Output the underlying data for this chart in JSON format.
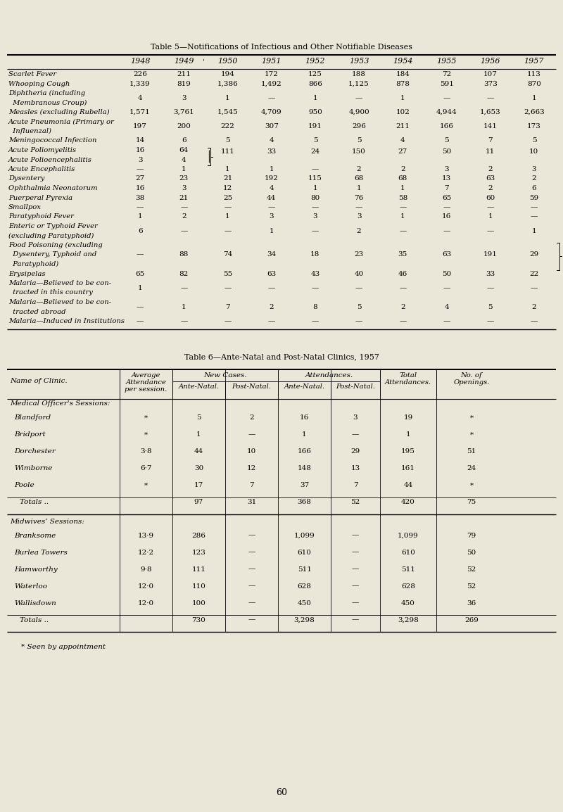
{
  "bg_color": "#eae6d8",
  "title5": "Table 5—Notifications of Infectious and Other Notifiable Diseases",
  "title6": "Table 6—Ante-Natal and Post-Natal Clinics, 1957",
  "footnote": "* Seen by appointment",
  "page_number": "60",
  "table5": {
    "years": [
      "1948",
      "1949",
      "1950",
      "1951",
      "1952",
      "1953",
      "1954",
      "1955",
      "1956",
      "1957"
    ],
    "rows": [
      {
        "label1": "Scarlet Fever",
        "label2": "",
        "label3": "",
        "dots": true,
        "values": [
          "226",
          "211",
          "194",
          "172",
          "125",
          "188",
          "184",
          "72",
          "107",
          "113"
        ]
      },
      {
        "label1": "Whooping Cough",
        "label2": "",
        "label3": "",
        "dots": true,
        "values": [
          "1,339",
          "819",
          "1,386",
          "1,492",
          "866",
          "1,125",
          "878",
          "591",
          "373",
          "870"
        ]
      },
      {
        "label1": "Diphtheria (including",
        "label2": "  Membranous Croup)",
        "label3": "",
        "dots": true,
        "values": [
          "4",
          "3",
          "1",
          "—",
          "1",
          "—",
          "1",
          "—",
          "—",
          "1"
        ]
      },
      {
        "label1": "Measles (excluding Rubella)",
        "label2": "",
        "label3": "",
        "dots": true,
        "values": [
          "1,571",
          "3,761",
          "1,545",
          "4,709",
          "950",
          "4,900",
          "102",
          "4,944",
          "1,653",
          "2,663"
        ]
      },
      {
        "label1": "Acute Pneumonia (Primary or",
        "label2": "  Influenzal)",
        "label3": "",
        "dots": true,
        "values": [
          "197",
          "200",
          "222",
          "307",
          "191",
          "296",
          "211",
          "166",
          "141",
          "173"
        ]
      },
      {
        "label1": "Meningococcal Infection",
        "label2": "",
        "label3": "",
        "dots": true,
        "values": [
          "14",
          "6",
          "5",
          "4",
          "5",
          "5",
          "4",
          "5",
          "7",
          "5"
        ]
      },
      {
        "label1": "Acute Poliomyelitis",
        "label2": "",
        "label3": "",
        "dots": true,
        "polio": true,
        "v1948": "16",
        "v1949": "64",
        "v_merged": [
          "111",
          "33",
          "24",
          "150",
          "27",
          "50",
          "11",
          "10"
        ]
      },
      {
        "label1": "Acute Polioencephalitis",
        "label2": "",
        "label3": "",
        "dots": true,
        "polio2": true,
        "v1948": "3",
        "v1949": "4"
      },
      {
        "label1": "Acute Encephalitis",
        "label2": "",
        "label3": "",
        "dots": false,
        "values": [
          "—",
          "1",
          "1",
          "1",
          "—",
          "2",
          "2",
          "3",
          "2",
          "3"
        ]
      },
      {
        "label1": "Dysentery",
        "label2": "",
        "label3": "",
        "dots": true,
        "values": [
          "27",
          "23",
          "21",
          "192",
          "115",
          "68",
          "68",
          "13",
          "63",
          "2"
        ]
      },
      {
        "label1": "Ophthalmia Neonatorum",
        "label2": "",
        "label3": "",
        "dots": true,
        "values": [
          "16",
          "3",
          "12",
          "4",
          "1",
          "1",
          "1",
          "7",
          "2",
          "6"
        ]
      },
      {
        "label1": "Puerperal Pyrexia",
        "label2": "",
        "label3": "",
        "dots": true,
        "values": [
          "38",
          "21",
          "25",
          "44",
          "80",
          "76",
          "58",
          "65",
          "60",
          "59"
        ]
      },
      {
        "label1": "Smallpox",
        "label2": "",
        "label3": "",
        "dots": true,
        "values": [
          "—",
          "—",
          "—",
          "—",
          "—",
          "—",
          "—",
          "—",
          "—",
          "—"
        ]
      },
      {
        "label1": "Paratyphoid Fever",
        "label2": "",
        "label3": "",
        "dots": true,
        "values": [
          "1",
          "2",
          "1",
          "3",
          "3",
          "3",
          "1",
          "16",
          "1",
          "—"
        ]
      },
      {
        "label1": "Enteric or Typhoid Fever",
        "label2": "(excluding Paratyphoid)",
        "label3": "",
        "dots": true,
        "values": [
          "6",
          "—",
          "—",
          "1",
          "—",
          "2",
          "—",
          "—",
          "—",
          "1"
        ]
      },
      {
        "label1": "Food Poisoning (excluding",
        "label2": "  Dysentery, Typhoid and",
        "label3": "  Paratyphoid)",
        "dots": false,
        "bracket": true,
        "values": [
          "—",
          "88",
          "74",
          "34",
          "18",
          "23",
          "35",
          "63",
          "191",
          "29"
        ]
      },
      {
        "label1": "Erysipelas",
        "label2": "",
        "label3": "",
        "dots": true,
        "values": [
          "65",
          "82",
          "55",
          "63",
          "43",
          "40",
          "46",
          "50",
          "33",
          "22"
        ]
      },
      {
        "label1": "Malaria—Believed to be con-",
        "label2": "  tracted in this country",
        "label3": "",
        "dots": true,
        "values": [
          "1",
          "—",
          "—",
          "—",
          "—",
          "—",
          "—",
          "—",
          "—",
          "—"
        ]
      },
      {
        "label1": "Malaria—Believed to be con-",
        "label2": "  tracted abroad",
        "label3": "",
        "dots": false,
        "values": [
          "—",
          "1",
          "7",
          "2",
          "8",
          "5",
          "2",
          "4",
          "5",
          "2"
        ]
      },
      {
        "label1": "Malaria—Induced in Institutions",
        "label2": "",
        "label3": "",
        "dots": false,
        "values": [
          "—",
          "—",
          "—",
          "—",
          "—",
          "—",
          "—",
          "—",
          "—",
          "—"
        ]
      }
    ]
  },
  "table6": {
    "sections": [
      {
        "section_label": "Medical Officer's Sessions:",
        "rows": [
          [
            "Blandford",
            "*",
            "5",
            "2",
            "16",
            "3",
            "19",
            "*"
          ],
          [
            "Bridport",
            "*",
            "1",
            "—",
            "1",
            "—",
            "1",
            "*"
          ],
          [
            "Dorchester",
            "3·8",
            "44",
            "10",
            "166",
            "29",
            "195",
            "51"
          ],
          [
            "Wimborne",
            "6·7",
            "30",
            "12",
            "148",
            "13",
            "161",
            "24"
          ],
          [
            "Poole",
            "*",
            "17",
            "7",
            "37",
            "7",
            "44",
            "*"
          ]
        ],
        "totals": [
          "Totals ..",
          "",
          "97",
          "31",
          "368",
          "52",
          "420",
          "75"
        ]
      },
      {
        "section_label": "Midwives’ Sessions:",
        "rows": [
          [
            "Branksome",
            "13·9",
            "286",
            "—",
            "1,099",
            "—",
            "1,099",
            "79"
          ],
          [
            "Burlea Towers",
            "12·2",
            "123",
            "—",
            "610",
            "—",
            "610",
            "50"
          ],
          [
            "Hamworthy",
            "9·8",
            "111",
            "—",
            "511",
            "—",
            "511",
            "52"
          ],
          [
            "Waterloo",
            "12·0",
            "110",
            "—",
            "628",
            "—",
            "628",
            "52"
          ],
          [
            "Wallisdown",
            "12·0",
            "100",
            "—",
            "450",
            "—",
            "450",
            "36"
          ]
        ],
        "totals": [
          "Totals ..",
          "",
          "730",
          "—",
          "3,298",
          "—",
          "3,298",
          "269"
        ]
      }
    ]
  }
}
